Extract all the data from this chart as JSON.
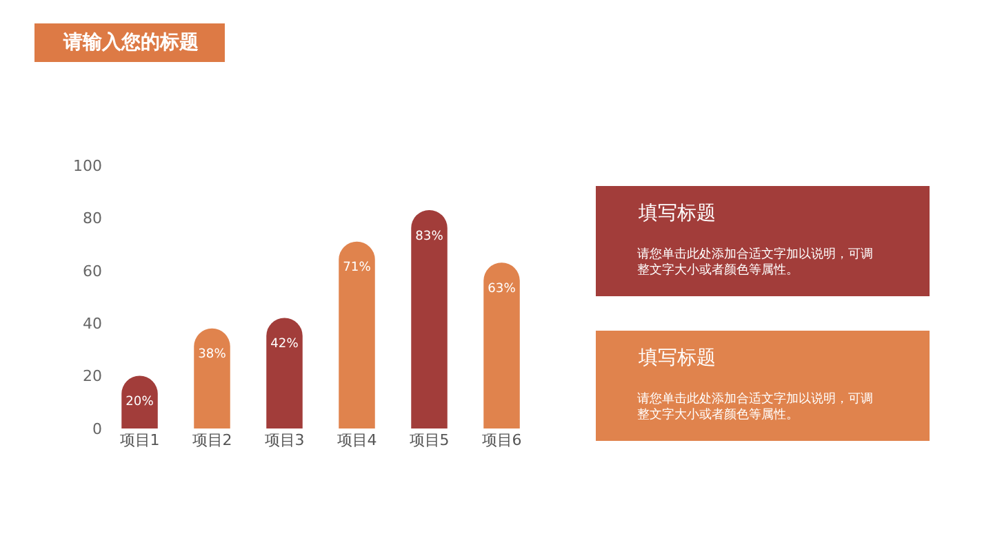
{
  "chart_data": {
    "type": "bar",
    "title": "请输入您的标题",
    "categories": [
      "项目1",
      "项目2",
      "项目3",
      "项目4",
      "项目5",
      "项目6"
    ],
    "values": [
      20,
      38,
      42,
      71,
      83,
      63
    ],
    "colors": [
      "#a23d3a",
      "#e0834d",
      "#a23d3a",
      "#e0834d",
      "#a23d3a",
      "#e0834d"
    ],
    "value_labels": [
      "20%",
      "38%",
      "42%",
      "71%",
      "83%",
      "63%"
    ],
    "ylim": [
      0,
      100
    ],
    "yticks": [
      0,
      20,
      40,
      60,
      80,
      100
    ],
    "annotations": [
      "填写标题",
      "请您单击此处添加合适文字加以说明，可调整文字大小或者颜色等属性。",
      "填写标题",
      "请您单击此处添加合适文字加以说明，可调整文字大小或者颜色等属性。"
    ]
  }
}
